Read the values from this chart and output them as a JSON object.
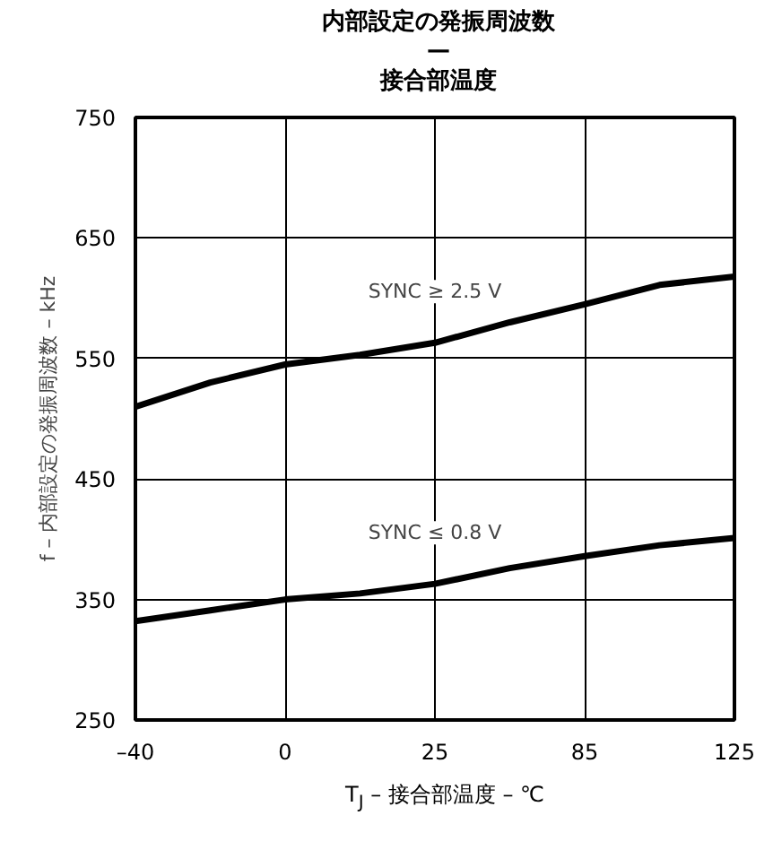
{
  "chart_data": {
    "type": "line",
    "title": "内部設定の発振周波数\n—\n接合部温度",
    "xlabel": "T$_{J}$ – 接合部温度 – ℃",
    "ylabel": "f – 内部設定の発振周波数 – kHz",
    "categories": [
      "–40",
      null,
      "0",
      null,
      "25",
      null,
      "85",
      null,
      "125"
    ],
    "series": [
      {
        "color": "#000000",
        "values": [
          510,
          530,
          545,
          553,
          563,
          580,
          595,
          611,
          618
        ]
      },
      {
        "color": "#000000",
        "values": [
          332,
          341,
          350,
          355,
          363,
          376,
          386,
          395,
          401
        ]
      }
    ],
    "annotations": [
      "SYNC ≥ 2.5 V",
      "SYNC ≤ 0.8 V"
    ],
    "ylim": [
      250,
      750
    ],
    "yticks": [
      250,
      350,
      450,
      550,
      650,
      750
    ],
    "grid": true,
    "marker": "none",
    "line_style": "solid"
  }
}
